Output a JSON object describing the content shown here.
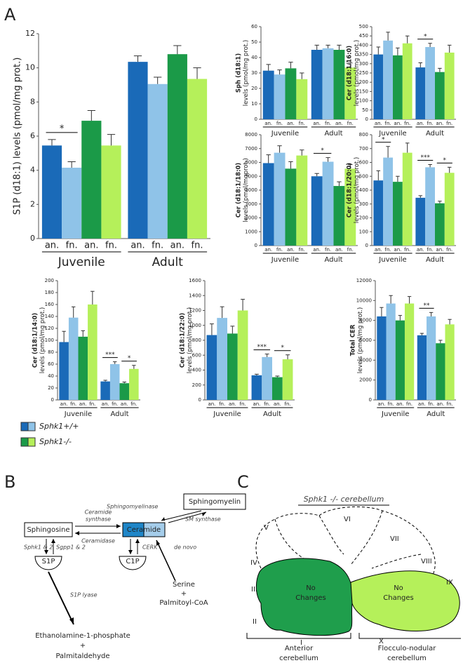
{
  "panel_labels": [
    "A",
    "B",
    "C"
  ],
  "chart_data": [
    {
      "type": "bar",
      "ylabel": [
        "S1P (d18:1) levels (pmol/mg prot.)"
      ],
      "groups": [
        "Juvenile",
        "Adult"
      ],
      "bar_labels": [
        "an.",
        "fn.",
        "an.",
        "fn."
      ],
      "ylim": [
        0,
        12
      ],
      "yticks": [
        0,
        2,
        4,
        6,
        8,
        10,
        12
      ],
      "series": [
        {
          "color": "#1a6ab8",
          "values": [
            5.45,
            10.35
          ],
          "errors": [
            0.35,
            0.35
          ]
        },
        {
          "color": "#8fc3e8",
          "values": [
            4.15,
            9.05
          ],
          "errors": [
            0.35,
            0.4
          ]
        },
        {
          "color": "#1b9a48",
          "values": [
            6.9,
            10.8
          ],
          "errors": [
            0.6,
            0.5
          ]
        },
        {
          "color": "#b5f05a",
          "values": [
            5.45,
            9.35
          ],
          "errors": [
            0.65,
            0.65
          ]
        }
      ],
      "significance": [
        {
          "label": "*",
          "group": 0,
          "bars": [
            0,
            1
          ]
        }
      ]
    },
    {
      "type": "bar",
      "ylabel": [
        "Sph (d18:1)",
        "levels (pmol/mg prot.)"
      ],
      "groups": [
        "Juvenile",
        "Adult"
      ],
      "bar_labels": [
        "an.",
        "fn.",
        "an.",
        "fn."
      ],
      "ylim": [
        0,
        60
      ],
      "yticks": [
        0,
        10,
        20,
        30,
        40,
        50,
        60
      ],
      "series": [
        {
          "color": "#1a6ab8",
          "values": [
            31.5,
            45
          ],
          "errors": [
            4,
            3
          ]
        },
        {
          "color": "#8fc3e8",
          "values": [
            29,
            46
          ],
          "errors": [
            3,
            2
          ]
        },
        {
          "color": "#1b9a48",
          "values": [
            33,
            45
          ],
          "errors": [
            4,
            3
          ]
        },
        {
          "color": "#b5f05a",
          "values": [
            26,
            33.5
          ],
          "errors": [
            4,
            3
          ]
        }
      ],
      "significance": []
    },
    {
      "type": "bar",
      "ylabel": [
        "Cer (d18:1/16:0)",
        "levels (pmol/mg prot.)"
      ],
      "groups": [
        "Juvenile",
        "Adult"
      ],
      "bar_labels": [
        "an.",
        "fn.",
        "an.",
        "fn."
      ],
      "ylim": [
        0,
        500
      ],
      "yticks": [
        0,
        50,
        100,
        150,
        200,
        250,
        300,
        350,
        400,
        450,
        500
      ],
      "series": [
        {
          "color": "#1a6ab8",
          "values": [
            350,
            280
          ],
          "errors": [
            40,
            25
          ]
        },
        {
          "color": "#8fc3e8",
          "values": [
            425,
            390
          ],
          "errors": [
            45,
            20
          ]
        },
        {
          "color": "#1b9a48",
          "values": [
            345,
            255
          ],
          "errors": [
            40,
            20
          ]
        },
        {
          "color": "#b5f05a",
          "values": [
            410,
            360
          ],
          "errors": [
            40,
            40
          ]
        }
      ],
      "significance": [
        {
          "label": "*",
          "group": 1,
          "bars": [
            0,
            1
          ]
        }
      ]
    },
    {
      "type": "bar",
      "ylabel": [
        "Cer (d18:1/18:0)",
        "levels (pmol/mgprot.)"
      ],
      "groups": [
        "Juvenile",
        "Adult"
      ],
      "bar_labels": [
        "an.",
        "fn.",
        "an.",
        "fn."
      ],
      "ylim": [
        0,
        8000
      ],
      "yticks": [
        0,
        1000,
        2000,
        3000,
        4000,
        5000,
        6000,
        7000,
        8000
      ],
      "series": [
        {
          "color": "#1a6ab8",
          "values": [
            5950,
            5000
          ],
          "errors": [
            600,
            200
          ]
        },
        {
          "color": "#8fc3e8",
          "values": [
            6700,
            6050
          ],
          "errors": [
            500,
            300
          ]
        },
        {
          "color": "#1b9a48",
          "values": [
            5550,
            4300
          ],
          "errors": [
            500,
            300
          ]
        },
        {
          "color": "#b5f05a",
          "values": [
            6500,
            5550
          ],
          "errors": [
            400,
            300
          ]
        }
      ],
      "significance": [
        {
          "label": "*",
          "group": 1,
          "bars": [
            0,
            1
          ]
        }
      ]
    },
    {
      "type": "bar",
      "ylabel": [
        "Cer (d18:1/20:0)",
        "levels (pmol/mg prot.)"
      ],
      "groups": [
        "Juvenile",
        "Adult"
      ],
      "bar_labels": [
        "an.",
        "fn.",
        "an.",
        "fn."
      ],
      "ylim": [
        0,
        800
      ],
      "yticks": [
        0,
        100,
        200,
        300,
        400,
        500,
        600,
        700,
        800
      ],
      "series": [
        {
          "color": "#1a6ab8",
          "values": [
            470,
            345
          ],
          "errors": [
            70,
            15
          ]
        },
        {
          "color": "#8fc3e8",
          "values": [
            635,
            565
          ],
          "errors": [
            80,
            20
          ]
        },
        {
          "color": "#1b9a48",
          "values": [
            460,
            305
          ],
          "errors": [
            40,
            15
          ]
        },
        {
          "color": "#b5f05a",
          "values": [
            670,
            525
          ],
          "errors": [
            70,
            40
          ]
        }
      ],
      "significance": [
        {
          "label": "*",
          "group": 0,
          "bars": [
            0,
            1
          ]
        },
        {
          "label": "***",
          "group": 1,
          "bars": [
            0,
            1
          ]
        },
        {
          "label": "*",
          "group": 1,
          "bars": [
            2,
            3
          ]
        }
      ]
    },
    {
      "type": "bar",
      "ylabel": [
        "Cer (d18:1/14:0)",
        "levels (pmol/mg prot.)"
      ],
      "groups": [
        "Juvenile",
        "Adult"
      ],
      "bar_labels": [
        "an.",
        "fn.",
        "an.",
        "fn."
      ],
      "ylim": [
        0,
        200
      ],
      "yticks": [
        0,
        20,
        40,
        60,
        80,
        100,
        120,
        140,
        160,
        180,
        200
      ],
      "series": [
        {
          "color": "#1a6ab8",
          "values": [
            97,
            31
          ],
          "errors": [
            18,
            2
          ]
        },
        {
          "color": "#8fc3e8",
          "values": [
            138,
            60
          ],
          "errors": [
            18,
            4
          ]
        },
        {
          "color": "#1b9a48",
          "values": [
            106,
            28
          ],
          "errors": [
            10,
            2
          ]
        },
        {
          "color": "#b5f05a",
          "values": [
            160,
            52
          ],
          "errors": [
            22,
            6
          ]
        }
      ],
      "significance": [
        {
          "label": "***",
          "group": 1,
          "bars": [
            0,
            1
          ]
        },
        {
          "label": "*",
          "group": 1,
          "bars": [
            2,
            3
          ]
        }
      ]
    },
    {
      "type": "bar",
      "ylabel": [
        "Cer (d18:1/22:0)",
        "levels (pmol/mg prot.)"
      ],
      "groups": [
        "Juvenile",
        "Adult"
      ],
      "bar_labels": [
        "an.",
        "fn.",
        "an.",
        "fn."
      ],
      "ylim": [
        0,
        1600
      ],
      "yticks": [
        0,
        200,
        400,
        600,
        800,
        1000,
        1200,
        1400,
        1600
      ],
      "series": [
        {
          "color": "#1a6ab8",
          "values": [
            870,
            330
          ],
          "errors": [
            150,
            15
          ]
        },
        {
          "color": "#8fc3e8",
          "values": [
            1100,
            575
          ],
          "errors": [
            150,
            40
          ]
        },
        {
          "color": "#1b9a48",
          "values": [
            890,
            305
          ],
          "errors": [
            100,
            15
          ]
        },
        {
          "color": "#b5f05a",
          "values": [
            1200,
            545
          ],
          "errors": [
            150,
            60
          ]
        }
      ],
      "significance": [
        {
          "label": "***",
          "group": 1,
          "bars": [
            0,
            1
          ]
        },
        {
          "label": "*",
          "group": 1,
          "bars": [
            2,
            3
          ]
        }
      ]
    },
    {
      "type": "bar",
      "ylabel": [
        "Total CER",
        "levels (pmol/mg prot.)"
      ],
      "groups": [
        "Juvenile",
        "Adult"
      ],
      "bar_labels": [
        "an.",
        "fn.",
        "an.",
        "fn."
      ],
      "ylim": [
        0,
        12000
      ],
      "yticks": [
        0,
        2000,
        4000,
        6000,
        8000,
        10000,
        12000
      ],
      "series": [
        {
          "color": "#1a6ab8",
          "values": [
            8400,
            6500
          ],
          "errors": [
            900,
            200
          ]
        },
        {
          "color": "#8fc3e8",
          "values": [
            9700,
            8400
          ],
          "errors": [
            800,
            400
          ]
        },
        {
          "color": "#1b9a48",
          "values": [
            8000,
            5700
          ],
          "errors": [
            500,
            300
          ]
        },
        {
          "color": "#b5f05a",
          "values": [
            9700,
            7600
          ],
          "errors": [
            700,
            500
          ]
        }
      ],
      "significance": [
        {
          "label": "**",
          "group": 1,
          "bars": [
            0,
            1
          ]
        }
      ]
    }
  ],
  "legend": [
    {
      "label": "Sphk1+/+",
      "series": [
        0,
        1
      ]
    },
    {
      "label": "Sphk1-/-",
      "series": [
        2,
        3
      ]
    }
  ],
  "diagram_b": {
    "nodes": [
      "Sphingomyelin",
      "Ceramide",
      "Sphingosine",
      "S1P",
      "C1P",
      [
        "Serine",
        "+",
        "Palmitoyl-CoA"
      ],
      [
        "Ethanolamine-1-phosphate",
        "+",
        "Palmitaldehyde"
      ]
    ],
    "edges": [
      "Sphingomyelinase",
      "SM synthase",
      [
        "Ceramide",
        "synthase"
      ],
      "Ceramidase",
      "Sphk1 & 2",
      "Sgpp1 & 2",
      "CERK",
      "de novo",
      "S1P lyase"
    ]
  },
  "diagram_c": {
    "title": "Sphk1 -/- cerebellum",
    "lobules": [
      "I",
      "II",
      "III",
      "IV",
      "V",
      "VI",
      "VII",
      "VIII",
      "IX",
      "X"
    ],
    "regions": [
      [
        "No",
        "Changes"
      ],
      [
        "No",
        "Changes"
      ]
    ],
    "sections": [
      [
        "Anterior",
        "cerebellum"
      ],
      [
        "Flocculo-nodular",
        "cerebellum"
      ]
    ]
  }
}
